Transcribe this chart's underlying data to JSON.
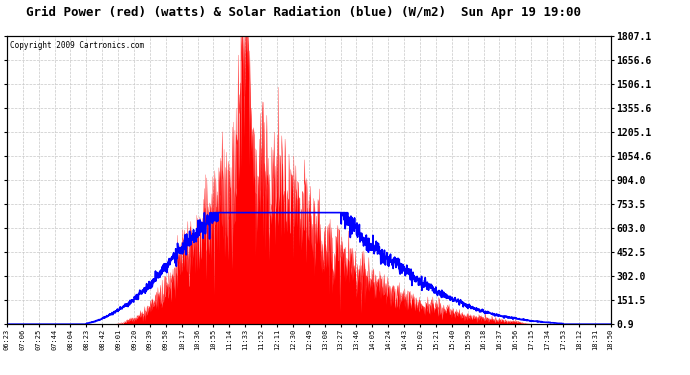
{
  "title": "Grid Power (red) (watts) & Solar Radiation (blue) (W/m2)  Sun Apr 19 19:00",
  "copyright_text": "Copyright 2009 Cartronics.com",
  "yticks": [
    0.9,
    151.5,
    302.0,
    452.5,
    603.0,
    753.5,
    904.0,
    1054.6,
    1205.1,
    1355.6,
    1506.1,
    1656.6,
    1807.1
  ],
  "xtick_labels": [
    "06:23",
    "07:06",
    "07:25",
    "07:44",
    "08:04",
    "08:23",
    "08:42",
    "09:01",
    "09:20",
    "09:39",
    "09:58",
    "10:17",
    "10:36",
    "10:55",
    "11:14",
    "11:33",
    "11:52",
    "12:11",
    "12:30",
    "12:49",
    "13:08",
    "13:27",
    "13:46",
    "14:05",
    "14:24",
    "14:43",
    "15:02",
    "15:21",
    "15:40",
    "15:59",
    "16:18",
    "16:37",
    "16:56",
    "17:15",
    "17:34",
    "17:53",
    "18:12",
    "18:31",
    "18:50"
  ],
  "background_color": "#ffffff",
  "grid_color": "#c8c8c8",
  "red_color": "#ff0000",
  "blue_color": "#0000ff",
  "ymin": 0.9,
  "ymax": 1807.1,
  "n_xticks": 39
}
